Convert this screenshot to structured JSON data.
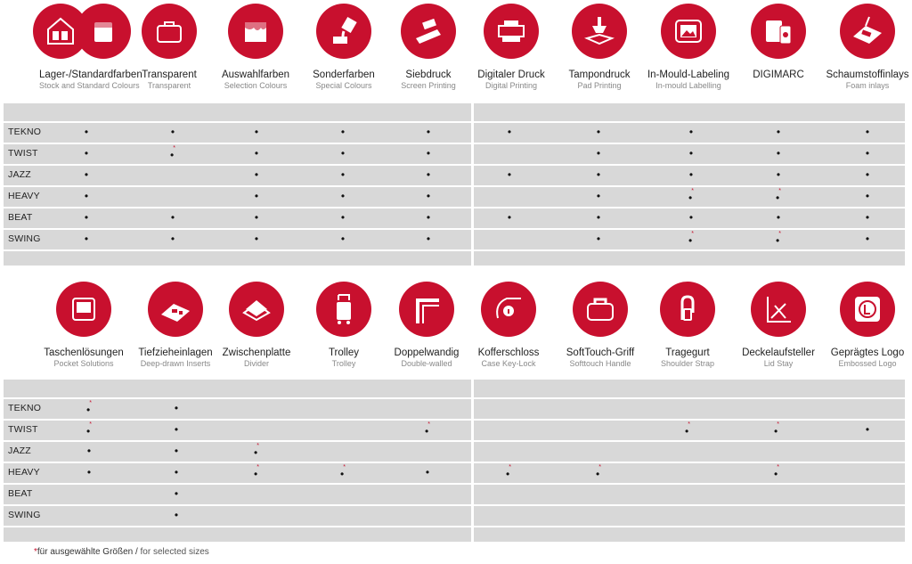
{
  "top_features": [
    {
      "de": "Lager-/Standardfarben",
      "en": "Stock and Standard Colours",
      "icon": "color-cans-icon"
    },
    {
      "de": "Transparent",
      "en": "Transparent",
      "icon": "transparent-case-icon"
    },
    {
      "de": "Auswahlfarben",
      "en": "Selection Colours",
      "icon": "paint-drip-icon"
    },
    {
      "de": "Sonderfarben",
      "en": "Special Colours",
      "icon": "paint-pour-icon"
    },
    {
      "de": "Siebdruck",
      "en": "Screen Printing",
      "icon": "squeegee-icon"
    },
    {
      "de": "Digitaler Druck",
      "en": "Digital Printing",
      "icon": "printer-icon"
    },
    {
      "de": "Tampondruck",
      "en": "Pad Printing",
      "icon": "pad-print-icon"
    },
    {
      "de": "In-Mould-Labeling",
      "en": "In-mould Labelling",
      "icon": "image-label-icon"
    },
    {
      "de": "DIGIMARC",
      "en": "",
      "icon": "digimarc-phone-icon"
    },
    {
      "de": "Schaumstoffinlays",
      "en": "Foam inlays",
      "icon": "foam-inlay-icon"
    }
  ],
  "bottom_features": [
    {
      "de": "Taschenlösungen",
      "en": "Pocket Solutions",
      "icon": "pocket-case-icon"
    },
    {
      "de": "Tiefzieheinlagen",
      "en": "Deep-drawn Inserts",
      "icon": "deep-drawn-insert-icon"
    },
    {
      "de": "Zwischenplatte",
      "en": "Divider",
      "icon": "divider-plate-icon"
    },
    {
      "de": "Trolley",
      "en": "Trolley",
      "icon": "trolley-icon"
    },
    {
      "de": "Doppelwandig",
      "en": "Double-walled",
      "icon": "double-wall-icon"
    },
    {
      "de": "Kofferschloss",
      "en": "Case Key-Lock",
      "icon": "key-lock-icon"
    },
    {
      "de": "SoftTouch-Griff",
      "en": "Softtouch Handle",
      "icon": "handle-icon"
    },
    {
      "de": "Tragegurt",
      "en": "Shoulder Strap",
      "icon": "shoulder-strap-icon"
    },
    {
      "de": "Deckelaufsteller",
      "en": "Lid Stay",
      "icon": "lid-stay-icon"
    },
    {
      "de": "Geprägtes Logo",
      "en": "Embossed Logo",
      "icon": "embossed-logo-icon"
    }
  ],
  "top_table": [
    {
      "name": "TEKNO",
      "cells": [
        "•",
        "•",
        "•",
        "•",
        "•",
        "•",
        "•",
        "•",
        "•",
        "•"
      ]
    },
    {
      "name": "TWIST",
      "cells": [
        "•",
        "•*",
        "•",
        "•",
        "•",
        "",
        "•",
        "•",
        "•",
        "•"
      ]
    },
    {
      "name": "JAZZ",
      "cells": [
        "•",
        "",
        "•",
        "•",
        "•",
        "•",
        "•",
        "•",
        "•",
        "•"
      ]
    },
    {
      "name": "HEAVY",
      "cells": [
        "•",
        "",
        "•",
        "•",
        "•",
        "",
        "•",
        "•*",
        "•*",
        "•"
      ]
    },
    {
      "name": "BEAT",
      "cells": [
        "•",
        "•",
        "•",
        "•",
        "•",
        "•",
        "•",
        "•",
        "•",
        "•"
      ]
    },
    {
      "name": "SWING",
      "cells": [
        "•",
        "•",
        "•",
        "•",
        "•",
        "",
        "•",
        "•*",
        "•*",
        "•"
      ]
    }
  ],
  "bottom_table": [
    {
      "name": "TEKNO",
      "cells": [
        "•*",
        "•",
        "",
        "",
        "",
        "",
        "",
        "",
        "",
        ""
      ]
    },
    {
      "name": "TWIST",
      "cells": [
        "•*",
        "•",
        "",
        "",
        "•*",
        "",
        "",
        "•*",
        "•*",
        "•"
      ]
    },
    {
      "name": "JAZZ",
      "cells": [
        "•",
        "•",
        "•*",
        "",
        "",
        "",
        "",
        "",
        "",
        ""
      ]
    },
    {
      "name": "HEAVY",
      "cells": [
        "•",
        "•",
        "•*",
        "•*",
        "•",
        "•*",
        "•*",
        "",
        "•*",
        ""
      ]
    },
    {
      "name": "BEAT",
      "cells": [
        "",
        "•",
        "",
        "",
        "",
        "",
        "",
        "",
        "",
        ""
      ]
    },
    {
      "name": "SWING",
      "cells": [
        "",
        "•",
        "",
        "",
        "",
        "",
        "",
        "",
        "",
        ""
      ]
    }
  ],
  "footnote": {
    "star": "*",
    "de": "für ausgewählte Größen",
    "sep": " / ",
    "en": "for selected sizes"
  },
  "colors": {
    "accent": "#c8102e",
    "table_bg": "#d8d8d8"
  }
}
